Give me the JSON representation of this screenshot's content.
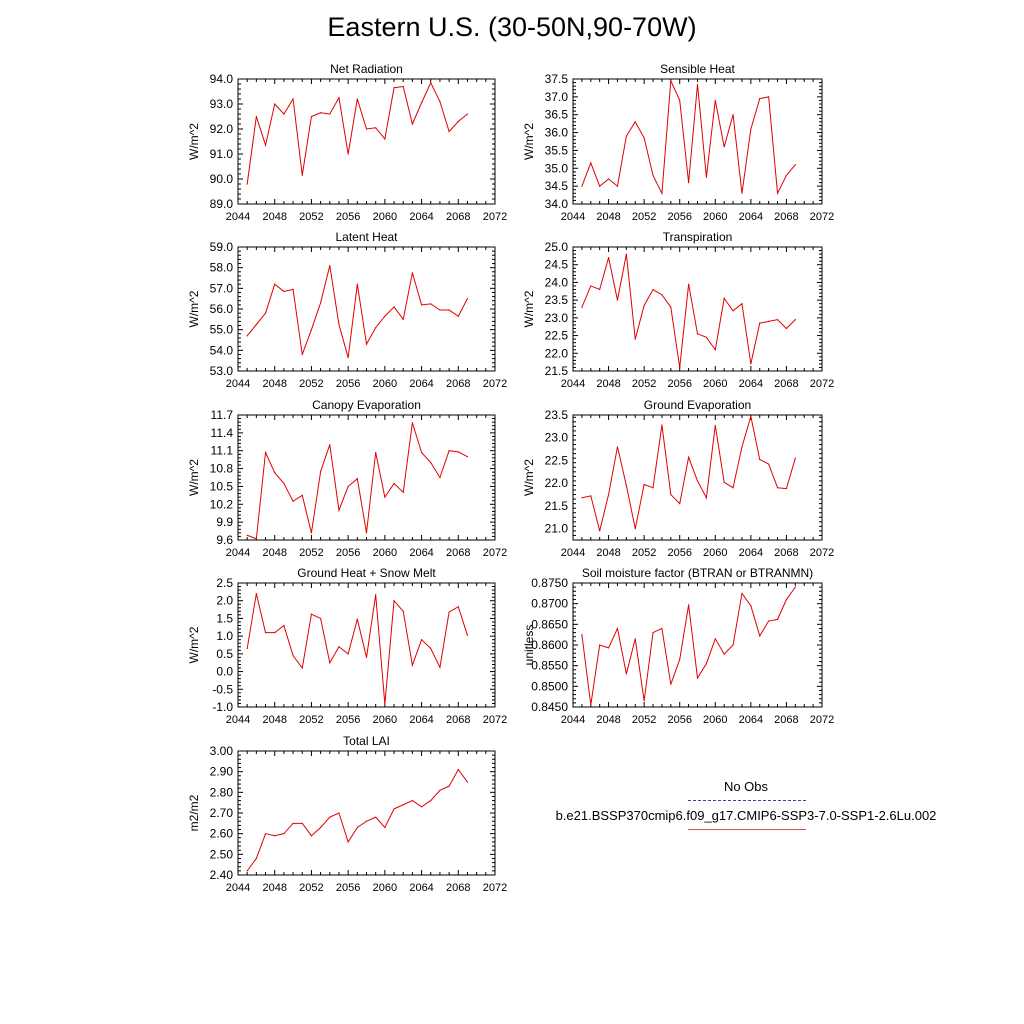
{
  "title": "Eastern U.S. (30-50N,90-70W)",
  "legend": {
    "obs_label": "No Obs",
    "case_label": "b.e21.BSSP370cmip6.f09_g17.CMIP6-SSP3-7.0-SSP1-2.6Lu.002",
    "obs_color": "#3b3bb5",
    "case_color": "#e00000"
  },
  "chart_data": [
    {
      "type": "line",
      "title": "Net Radiation",
      "ylabel": "W/m^2",
      "xlim": [
        2044,
        2072
      ],
      "xticks": [
        "2044",
        "2048",
        "2052",
        "2056",
        "2060",
        "2064",
        "2068",
        "2072"
      ],
      "ylim": [
        89.0,
        94.0
      ],
      "yticks": [
        "89.0",
        "90.0",
        "91.0",
        "92.0",
        "93.0",
        "94.0"
      ],
      "x": [
        2045,
        2046,
        2047,
        2048,
        2049,
        2050,
        2051,
        2052,
        2053,
        2054,
        2055,
        2056,
        2057,
        2058,
        2059,
        2060,
        2061,
        2062,
        2063,
        2064,
        2065,
        2066,
        2067,
        2068,
        2069
      ],
      "series": [
        {
          "values": [
            89.8,
            92.5,
            91.35,
            93.0,
            92.6,
            93.2,
            90.15,
            92.5,
            92.65,
            92.6,
            93.25,
            91.0,
            93.2,
            92.0,
            92.05,
            91.6,
            93.65,
            93.7,
            92.2,
            93.05,
            93.85,
            93.1,
            91.9,
            92.3,
            92.6
          ]
        }
      ]
    },
    {
      "type": "line",
      "title": "Sensible Heat",
      "ylabel": "W/m^2",
      "xlim": [
        2044,
        2072
      ],
      "xticks": [
        "2044",
        "2048",
        "2052",
        "2056",
        "2060",
        "2064",
        "2068",
        "2072"
      ],
      "ylim": [
        34.0,
        37.5
      ],
      "yticks": [
        "34.0",
        "34.5",
        "35.0",
        "35.5",
        "36.0",
        "36.5",
        "37.0",
        "37.5"
      ],
      "x": [
        2045,
        2046,
        2047,
        2048,
        2049,
        2050,
        2051,
        2052,
        2053,
        2054,
        2055,
        2056,
        2057,
        2058,
        2059,
        2060,
        2061,
        2062,
        2063,
        2064,
        2065,
        2066,
        2067,
        2068,
        2069
      ],
      "series": [
        {
          "values": [
            34.5,
            35.15,
            34.5,
            34.7,
            34.5,
            35.9,
            36.3,
            35.85,
            34.8,
            34.3,
            37.45,
            36.9,
            34.6,
            37.35,
            34.75,
            36.9,
            35.6,
            36.5,
            34.3,
            36.1,
            36.95,
            37.0,
            34.3,
            34.8,
            35.1
          ]
        }
      ]
    },
    {
      "type": "line",
      "title": "Latent Heat",
      "ylabel": "W/m^2",
      "xlim": [
        2044,
        2072
      ],
      "xticks": [
        "2044",
        "2048",
        "2052",
        "2056",
        "2060",
        "2064",
        "2068",
        "2072"
      ],
      "ylim": [
        53.0,
        59.0
      ],
      "yticks": [
        "53.0",
        "54.0",
        "55.0",
        "56.0",
        "57.0",
        "58.0",
        "59.0"
      ],
      "x": [
        2045,
        2046,
        2047,
        2048,
        2049,
        2050,
        2051,
        2052,
        2053,
        2054,
        2055,
        2056,
        2057,
        2058,
        2059,
        2060,
        2061,
        2062,
        2063,
        2064,
        2065,
        2066,
        2067,
        2068,
        2069
      ],
      "series": [
        {
          "values": [
            54.7,
            55.25,
            55.8,
            57.2,
            56.85,
            56.95,
            53.8,
            55.0,
            56.3,
            58.1,
            55.25,
            53.65,
            57.2,
            54.3,
            55.1,
            55.65,
            56.1,
            55.5,
            57.75,
            56.2,
            56.25,
            55.95,
            55.95,
            55.65,
            56.5
          ]
        }
      ]
    },
    {
      "type": "line",
      "title": "Transpiration",
      "ylabel": "W/m^2",
      "xlim": [
        2044,
        2072
      ],
      "xticks": [
        "2044",
        "2048",
        "2052",
        "2056",
        "2060",
        "2064",
        "2068",
        "2072"
      ],
      "ylim": [
        21.5,
        25.0
      ],
      "yticks": [
        "21.5",
        "22.0",
        "22.5",
        "23.0",
        "23.5",
        "24.0",
        "24.5",
        "25.0"
      ],
      "x": [
        2045,
        2046,
        2047,
        2048,
        2049,
        2050,
        2051,
        2052,
        2053,
        2054,
        2055,
        2056,
        2057,
        2058,
        2059,
        2060,
        2061,
        2062,
        2063,
        2064,
        2065,
        2066,
        2067,
        2068,
        2069
      ],
      "series": [
        {
          "values": [
            23.3,
            23.9,
            23.8,
            24.7,
            23.5,
            24.8,
            22.4,
            23.35,
            23.8,
            23.65,
            23.3,
            21.6,
            23.95,
            22.55,
            22.45,
            22.1,
            23.55,
            23.2,
            23.4,
            21.7,
            22.85,
            22.9,
            22.95,
            22.7,
            22.95
          ]
        }
      ]
    },
    {
      "type": "line",
      "title": "Canopy Evaporation",
      "ylabel": "W/m^2",
      "xlim": [
        2044,
        2072
      ],
      "xticks": [
        "2044",
        "2048",
        "2052",
        "2056",
        "2060",
        "2064",
        "2068",
        "2072"
      ],
      "ylim": [
        9.6,
        11.7
      ],
      "yticks": [
        "9.6",
        "9.9",
        "10.2",
        "10.5",
        "10.8",
        "11.1",
        "11.4",
        "11.7"
      ],
      "x": [
        2045,
        2046,
        2047,
        2048,
        2049,
        2050,
        2051,
        2052,
        2053,
        2054,
        2055,
        2056,
        2057,
        2058,
        2059,
        2060,
        2061,
        2062,
        2063,
        2064,
        2065,
        2066,
        2067,
        2068,
        2069
      ],
      "series": [
        {
          "values": [
            9.68,
            9.62,
            11.07,
            10.73,
            10.55,
            10.25,
            10.35,
            9.72,
            10.75,
            11.2,
            10.1,
            10.5,
            10.63,
            9.72,
            11.07,
            10.32,
            10.55,
            10.4,
            11.57,
            11.07,
            10.9,
            10.65,
            11.1,
            11.08,
            11.0
          ]
        }
      ]
    },
    {
      "type": "line",
      "title": "Ground Evaporation",
      "ylabel": "W/m^2",
      "xlim": [
        2044,
        2072
      ],
      "xticks": [
        "2044",
        "2048",
        "2052",
        "2056",
        "2060",
        "2064",
        "2068",
        "2072"
      ],
      "ylim": [
        20.75,
        23.5
      ],
      "yticks": [
        "21.0",
        "21.5",
        "22.0",
        "22.5",
        "23.0",
        "23.5"
      ],
      "x": [
        2045,
        2046,
        2047,
        2048,
        2049,
        2050,
        2051,
        2052,
        2053,
        2054,
        2055,
        2056,
        2057,
        2058,
        2059,
        2060,
        2061,
        2062,
        2063,
        2064,
        2065,
        2066,
        2067,
        2068,
        2069
      ],
      "series": [
        {
          "values": [
            21.68,
            21.72,
            20.95,
            21.75,
            22.8,
            21.95,
            21.0,
            21.97,
            21.9,
            23.28,
            21.75,
            21.55,
            22.57,
            22.05,
            21.68,
            23.27,
            22.02,
            21.9,
            22.8,
            23.47,
            22.52,
            22.42,
            21.9,
            21.88,
            22.55
          ]
        }
      ]
    },
    {
      "type": "line",
      "title": "Ground Heat + Snow Melt",
      "ylabel": "W/m^2",
      "xlim": [
        2044,
        2072
      ],
      "xticks": [
        "2044",
        "2048",
        "2052",
        "2056",
        "2060",
        "2064",
        "2068",
        "2072"
      ],
      "ylim": [
        -1.0,
        2.5
      ],
      "yticks": [
        "-1.0",
        "-0.5",
        "0.0",
        "0.5",
        "1.0",
        "1.5",
        "2.0",
        "2.5"
      ],
      "x": [
        2045,
        2046,
        2047,
        2048,
        2049,
        2050,
        2051,
        2052,
        2053,
        2054,
        2055,
        2056,
        2057,
        2058,
        2059,
        2060,
        2061,
        2062,
        2063,
        2064,
        2065,
        2066,
        2067,
        2068,
        2069
      ],
      "series": [
        {
          "values": [
            0.65,
            2.2,
            1.1,
            1.1,
            1.3,
            0.45,
            0.1,
            1.62,
            1.5,
            0.25,
            0.7,
            0.5,
            1.48,
            0.4,
            2.17,
            -0.92,
            2.0,
            1.7,
            0.18,
            0.9,
            0.65,
            0.12,
            1.68,
            1.83,
            1.02
          ]
        }
      ]
    },
    {
      "type": "line",
      "title": "Soil moisture factor (BTRAN or BTRANMN)",
      "ylabel": "unitless",
      "xlim": [
        2044,
        2072
      ],
      "xticks": [
        "2044",
        "2048",
        "2052",
        "2056",
        "2060",
        "2064",
        "2068",
        "2072"
      ],
      "ylim": [
        0.845,
        0.875
      ],
      "yticks": [
        "0.8450",
        "0.8500",
        "0.8550",
        "0.8600",
        "0.8650",
        "0.8700",
        "0.8750"
      ],
      "x": [
        2045,
        2046,
        2047,
        2048,
        2049,
        2050,
        2051,
        2052,
        2053,
        2054,
        2055,
        2056,
        2057,
        2058,
        2059,
        2060,
        2061,
        2062,
        2063,
        2064,
        2065,
        2066,
        2067,
        2068,
        2069
      ],
      "series": [
        {
          "values": [
            0.8625,
            0.8455,
            0.86,
            0.8593,
            0.864,
            0.853,
            0.8615,
            0.8465,
            0.863,
            0.864,
            0.8505,
            0.8565,
            0.8697,
            0.852,
            0.8555,
            0.8615,
            0.8578,
            0.86,
            0.8725,
            0.8695,
            0.8622,
            0.8658,
            0.8662,
            0.871,
            0.874
          ]
        }
      ]
    },
    {
      "type": "line",
      "title": "Total LAI",
      "ylabel": "m2/m2",
      "xlim": [
        2044,
        2072
      ],
      "xticks": [
        "2044",
        "2048",
        "2052",
        "2056",
        "2060",
        "2064",
        "2068",
        "2072"
      ],
      "ylim": [
        2.4,
        3.0
      ],
      "yticks": [
        "2.40",
        "2.50",
        "2.60",
        "2.70",
        "2.80",
        "2.90",
        "3.00"
      ],
      "x": [
        2045,
        2046,
        2047,
        2048,
        2049,
        2050,
        2051,
        2052,
        2053,
        2054,
        2055,
        2056,
        2057,
        2058,
        2059,
        2060,
        2061,
        2062,
        2063,
        2064,
        2065,
        2066,
        2067,
        2068,
        2069
      ],
      "series": [
        {
          "values": [
            2.42,
            2.48,
            2.6,
            2.59,
            2.6,
            2.65,
            2.65,
            2.59,
            2.63,
            2.68,
            2.7,
            2.56,
            2.63,
            2.66,
            2.68,
            2.63,
            2.72,
            2.74,
            2.76,
            2.73,
            2.76,
            2.81,
            2.83,
            2.91,
            2.85
          ]
        }
      ]
    }
  ]
}
